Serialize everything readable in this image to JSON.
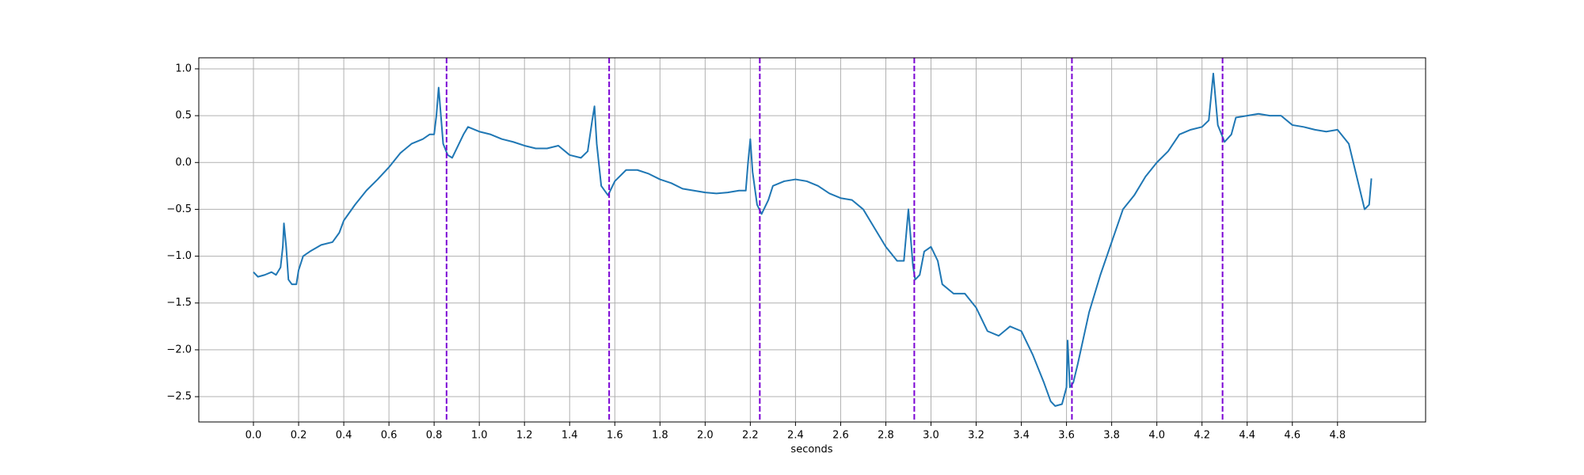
{
  "chart_data": {
    "type": "line",
    "x_label": "seconds",
    "x": [
      0.0,
      0.02,
      0.05,
      0.08,
      0.1,
      0.12,
      0.13,
      0.135,
      0.145,
      0.155,
      0.17,
      0.19,
      0.2,
      0.22,
      0.25,
      0.3,
      0.35,
      0.38,
      0.4,
      0.45,
      0.5,
      0.55,
      0.6,
      0.65,
      0.7,
      0.75,
      0.78,
      0.8,
      0.81,
      0.82,
      0.83,
      0.84,
      0.86,
      0.88,
      0.9,
      0.93,
      0.95,
      1.0,
      1.05,
      1.1,
      1.15,
      1.2,
      1.25,
      1.3,
      1.35,
      1.4,
      1.45,
      1.48,
      1.5,
      1.51,
      1.52,
      1.54,
      1.57,
      1.6,
      1.65,
      1.7,
      1.75,
      1.8,
      1.85,
      1.9,
      1.95,
      2.0,
      2.05,
      2.1,
      2.15,
      2.18,
      2.19,
      2.2,
      2.21,
      2.23,
      2.25,
      2.28,
      2.3,
      2.35,
      2.4,
      2.45,
      2.5,
      2.55,
      2.6,
      2.65,
      2.7,
      2.75,
      2.8,
      2.85,
      2.88,
      2.9,
      2.92,
      2.93,
      2.95,
      2.97,
      3.0,
      3.03,
      3.05,
      3.1,
      3.15,
      3.2,
      3.25,
      3.3,
      3.35,
      3.4,
      3.45,
      3.5,
      3.53,
      3.55,
      3.58,
      3.6,
      3.605,
      3.615,
      3.63,
      3.65,
      3.7,
      3.75,
      3.8,
      3.85,
      3.9,
      3.95,
      4.0,
      4.05,
      4.1,
      4.15,
      4.2,
      4.23,
      4.25,
      4.27,
      4.3,
      4.33,
      4.35,
      4.4,
      4.45,
      4.5,
      4.55,
      4.6,
      4.65,
      4.7,
      4.75,
      4.8,
      4.85,
      4.88,
      4.9,
      4.92,
      4.94,
      4.95
    ],
    "values": [
      -1.17,
      -1.22,
      -1.2,
      -1.17,
      -1.2,
      -1.12,
      -0.9,
      -0.65,
      -0.9,
      -1.25,
      -1.3,
      -1.3,
      -1.15,
      -1.0,
      -0.95,
      -0.88,
      -0.85,
      -0.75,
      -0.62,
      -0.45,
      -0.3,
      -0.18,
      -0.05,
      0.1,
      0.2,
      0.25,
      0.3,
      0.3,
      0.5,
      0.8,
      0.5,
      0.2,
      0.08,
      0.05,
      0.15,
      0.3,
      0.38,
      0.33,
      0.3,
      0.25,
      0.22,
      0.18,
      0.15,
      0.15,
      0.18,
      0.08,
      0.05,
      0.12,
      0.45,
      0.6,
      0.2,
      -0.25,
      -0.35,
      -0.2,
      -0.08,
      -0.08,
      -0.12,
      -0.18,
      -0.22,
      -0.28,
      -0.3,
      -0.32,
      -0.33,
      -0.32,
      -0.3,
      -0.3,
      0.0,
      0.25,
      -0.1,
      -0.45,
      -0.55,
      -0.4,
      -0.25,
      -0.2,
      -0.18,
      -0.2,
      -0.25,
      -0.33,
      -0.38,
      -0.4,
      -0.5,
      -0.7,
      -0.9,
      -1.05,
      -1.05,
      -0.5,
      -1.1,
      -1.25,
      -1.2,
      -0.95,
      -0.9,
      -1.05,
      -1.3,
      -1.4,
      -1.4,
      -1.55,
      -1.8,
      -1.85,
      -1.75,
      -1.8,
      -2.05,
      -2.35,
      -2.55,
      -2.6,
      -2.58,
      -2.4,
      -1.9,
      -2.4,
      -2.35,
      -2.15,
      -1.6,
      -1.2,
      -0.85,
      -0.5,
      -0.35,
      -0.15,
      0.0,
      0.12,
      0.3,
      0.35,
      0.38,
      0.45,
      0.95,
      0.4,
      0.22,
      0.3,
      0.48,
      0.5,
      0.52,
      0.5,
      0.5,
      0.4,
      0.38,
      0.35,
      0.33,
      0.35,
      0.2,
      -0.1,
      -0.3,
      -0.5,
      -0.45,
      -0.17
    ],
    "color": "#1f77b4",
    "vlines": [
      0.855,
      1.575,
      2.242,
      2.926,
      3.624,
      4.291
    ],
    "vline_color": "#7b00d4",
    "xlim": [
      -0.242,
      5.19
    ],
    "ylim": [
      -2.77,
      1.118
    ],
    "xticks": [
      {
        "value": 0,
        "label": "0.0"
      },
      0.2,
      0.4,
      0.6,
      0.8,
      {
        "value": 1,
        "label": "1.0"
      },
      1.2,
      1.4,
      1.6,
      1.8,
      {
        "value": 2,
        "label": "2.0"
      },
      2.2,
      2.4,
      2.6,
      2.8,
      {
        "value": 3,
        "label": "3.0"
      },
      3.2,
      3.4,
      3.6,
      3.8,
      {
        "value": 4,
        "label": "4.0"
      },
      4.2,
      4.4,
      4.6,
      4.8
    ],
    "yticks": [
      {
        "value": -2.5,
        "label": "−2.5"
      },
      {
        "value": -2,
        "label": "−2.0"
      },
      {
        "value": -1.5,
        "label": "−1.5"
      },
      {
        "value": -1,
        "label": "−1.0"
      },
      {
        "value": -0.5,
        "label": "−0.5"
      },
      {
        "value": 0,
        "label": "0.0"
      },
      0.5,
      {
        "value": 1,
        "label": "1.0"
      }
    ],
    "grid": true
  }
}
